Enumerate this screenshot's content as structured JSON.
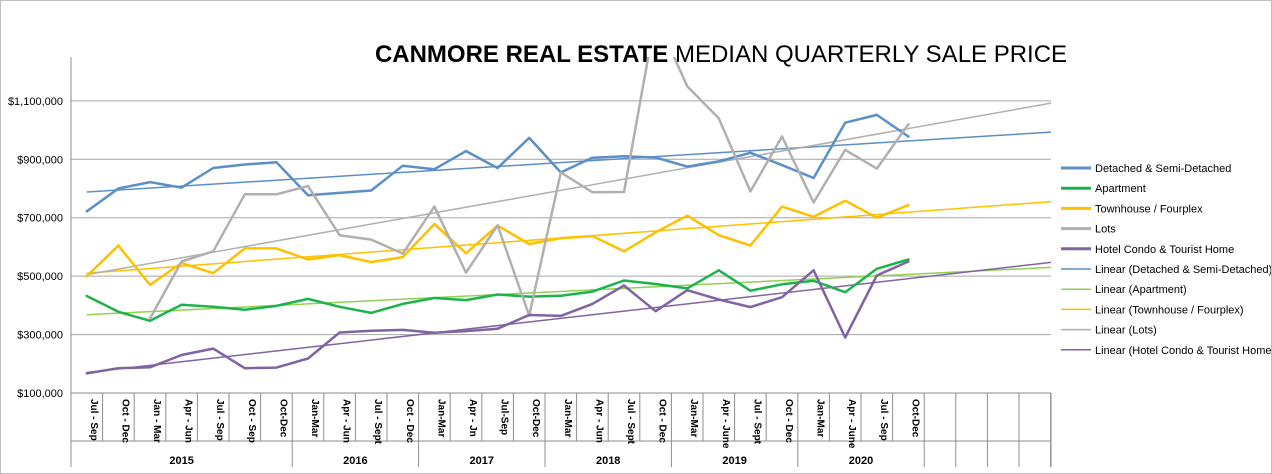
{
  "title_bold": "CANMORE REAL ESTATE",
  "title_rest": " MEDIAN QUARTERLY SALE PRICE",
  "chart_data": {
    "type": "line",
    "title": "CANMORE REAL ESTATE MEDIAN QUARTERLY SALE PRICE",
    "xlabel": "",
    "ylabel": "",
    "ylim": [
      100000,
      1250000
    ],
    "y_ticks": [
      100000,
      300000,
      500000,
      700000,
      900000,
      1100000
    ],
    "y_tick_labels": [
      "$100,000",
      "$300,000",
      "$500,000",
      "$700,000",
      "$900,000",
      "$1,100,000"
    ],
    "categories": [
      "Jul - Sep",
      "Oct - Dec",
      "Jan - Mar",
      "Apr - Jun",
      "Jul - Sep",
      "Oct - Sep",
      "Oct-Dec",
      "Jan-Mar",
      "Apr - Jun",
      "Jul - Sept",
      "Oct - Dec",
      "Jan-Mar",
      "Apr - Jn",
      "Jul-Sep",
      "Oct-Dec",
      "Jan-Mar",
      "Apr - Jun",
      "Jul - Sept",
      "Oct - Dec",
      "Jan-Mar",
      "Apr - June",
      "Jul - Sept",
      "Oct - Dec",
      "Jan-Mar",
      "Apr - June",
      "Jul - Sep",
      "Oct-Dec"
    ],
    "year_groups": [
      {
        "label": "2015",
        "start": 0,
        "end": 6
      },
      {
        "label": "2016",
        "start": 7,
        "end": 10
      },
      {
        "label": "2017",
        "start": 11,
        "end": 14
      },
      {
        "label": "2018",
        "start": 15,
        "end": 18
      },
      {
        "label": "2019",
        "start": 19,
        "end": 22
      },
      {
        "label": "2020",
        "start": 23,
        "end": 26
      }
    ],
    "extra_slots": 4,
    "grid": true,
    "legend_position": "right",
    "series": [
      {
        "name": "Detached & Semi-Detached",
        "color": "#5b8fc7",
        "width": 2.5,
        "values": [
          722000,
          800000,
          822000,
          803000,
          870000,
          882000,
          890000,
          777000,
          785000,
          793000,
          878000,
          866000,
          928000,
          870000,
          973000,
          855000,
          905000,
          910000,
          906000,
          875000,
          893000,
          922000,
          880000,
          836000,
          1025000,
          1052000,
          978000
        ]
      },
      {
        "name": "Apartment",
        "color": "#1db34c",
        "width": 2.5,
        "values": [
          432000,
          378000,
          347000,
          402000,
          395000,
          385000,
          398000,
          422000,
          395000,
          374000,
          405000,
          425000,
          418000,
          437000,
          430000,
          433000,
          447000,
          485000,
          473000,
          458000,
          520000,
          450000,
          472000,
          484000,
          445000,
          525000,
          557000
        ]
      },
      {
        "name": "Townhouse / Fourplex",
        "color": "#ffc000",
        "width": 2.5,
        "values": [
          500000,
          605000,
          470000,
          545000,
          510000,
          595000,
          595000,
          557000,
          572000,
          548000,
          565000,
          678000,
          578000,
          673000,
          610000,
          630000,
          637000,
          585000,
          650000,
          707000,
          640000,
          605000,
          738000,
          703000,
          758000,
          700000,
          743000
        ]
      },
      {
        "name": "Lots",
        "color": "#b0b0b0",
        "width": 2.5,
        "values": [
          null,
          null,
          355000,
          550000,
          585000,
          780000,
          780000,
          808000,
          640000,
          625000,
          577000,
          738000,
          512000,
          674000,
          365000,
          855000,
          787000,
          788000,
          1390000,
          1150000,
          1040000,
          790000,
          978000,
          752000,
          932000,
          868000,
          1020000
        ]
      },
      {
        "name": "Hotel Condo & Tourist Home",
        "color": "#8064a2",
        "width": 2.5,
        "values": [
          167000,
          185000,
          188000,
          230000,
          252000,
          185000,
          187000,
          218000,
          307000,
          313000,
          316000,
          306000,
          312000,
          320000,
          367000,
          364000,
          405000,
          468000,
          380000,
          452000,
          420000,
          394000,
          428000,
          520000,
          290000,
          502000,
          550000
        ]
      },
      {
        "name": "Linear (Detached & Semi-Detached)",
        "color": "#5b8fc7",
        "width": 1.5,
        "trend": [
          788000,
          993000
        ]
      },
      {
        "name": "Linear (Apartment)",
        "color": "#92d050",
        "width": 1.5,
        "trend": [
          368000,
          530000
        ]
      },
      {
        "name": "Linear (Townhouse / Fourplex)",
        "color": "#ffc000",
        "width": 1.5,
        "trend": [
          510000,
          755000
        ]
      },
      {
        "name": "Linear (Lots)",
        "color": "#b0b0b0",
        "width": 1.5,
        "trend": [
          505000,
          1092000
        ]
      },
      {
        "name": "Linear (Hotel Condo & Tourist Home)",
        "color": "#8064a2",
        "width": 1.5,
        "trend": [
          170000,
          547000
        ]
      }
    ]
  }
}
